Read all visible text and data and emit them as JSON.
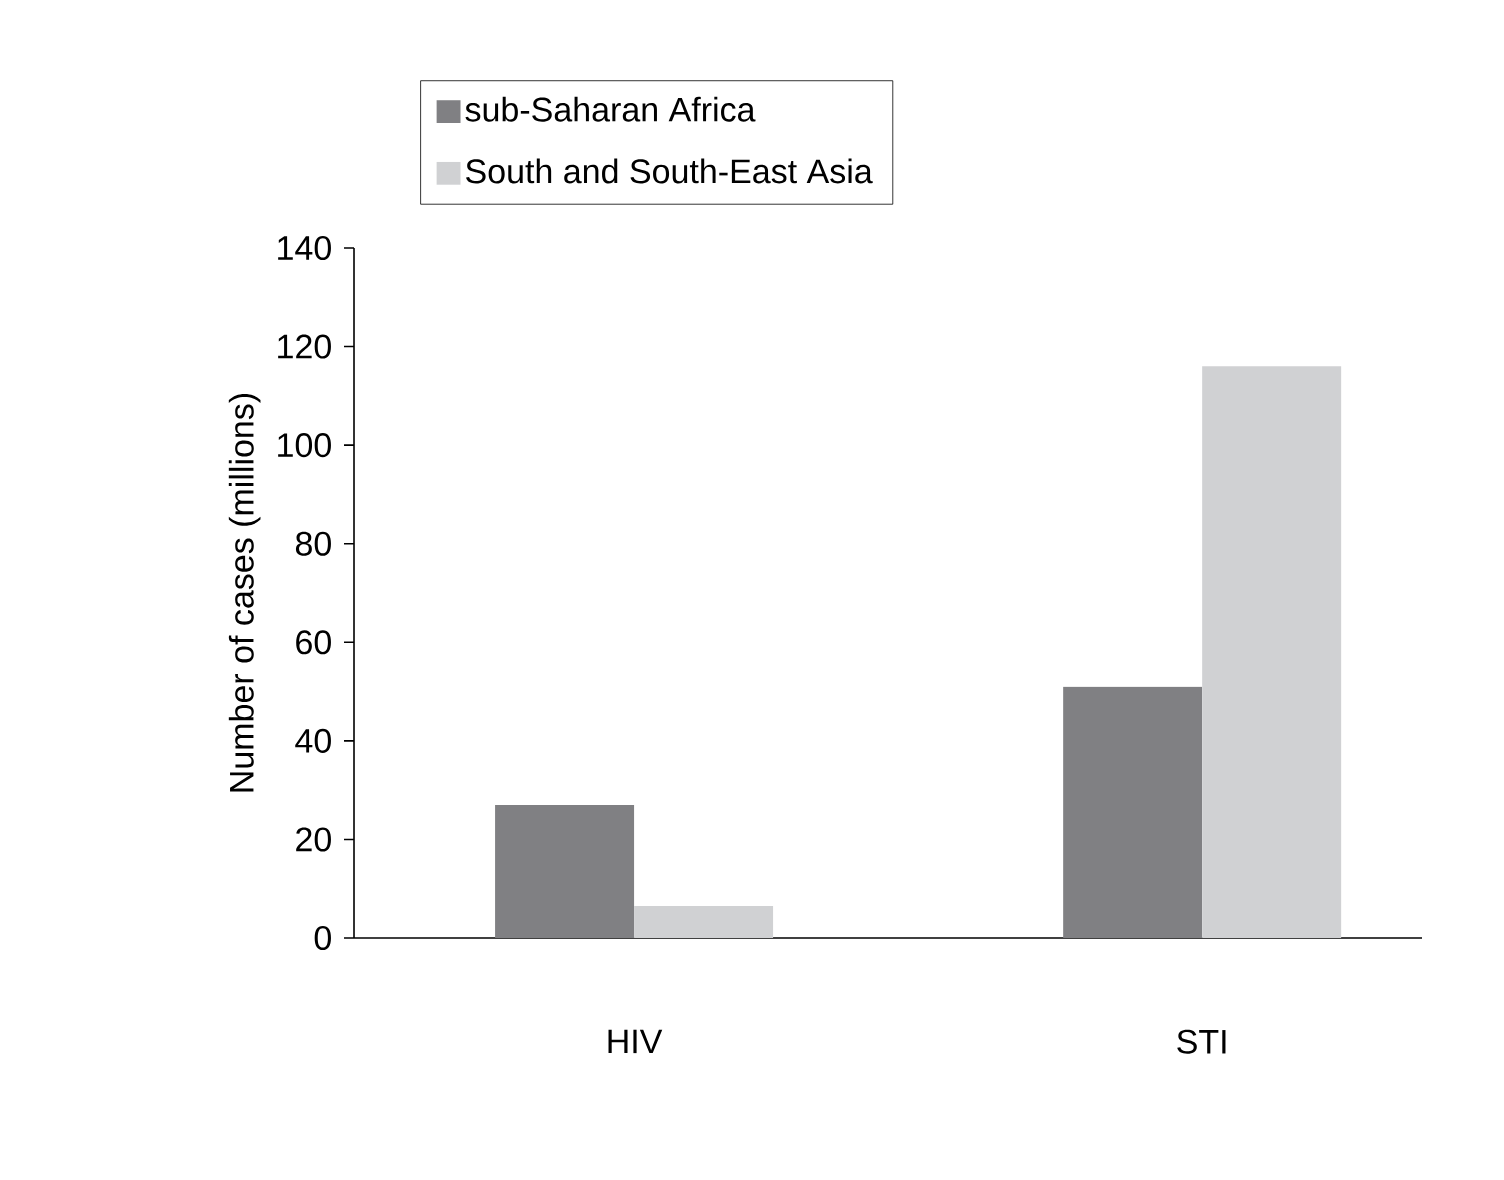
{
  "chart_data": {
    "type": "bar",
    "ylabel": "Number of cases (millions)",
    "categories": [
      "HIV",
      "STI"
    ],
    "series": [
      {
        "name": "sub-Saharan Africa",
        "color": "#808083",
        "values": [
          27,
          51
        ]
      },
      {
        "name": "South and South-East Asia",
        "color": "#d0d1d3",
        "values": [
          6.5,
          116
        ]
      }
    ],
    "ylim": [
      0,
      140
    ],
    "yticks": [
      0,
      20,
      40,
      60,
      80,
      100,
      120,
      140
    ],
    "legend": "top left",
    "grid": false
  }
}
